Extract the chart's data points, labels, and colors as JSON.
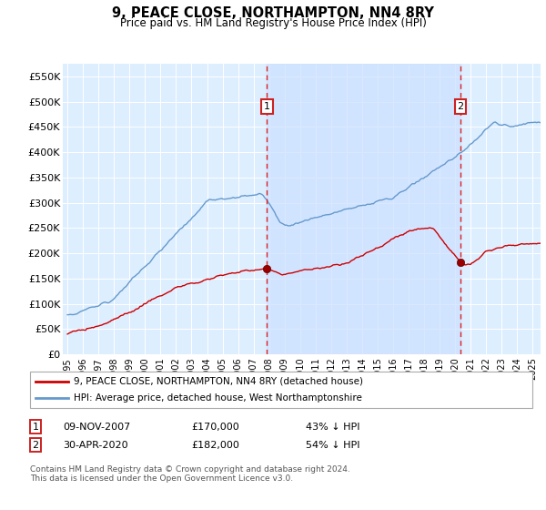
{
  "title": "9, PEACE CLOSE, NORTHAMPTON, NN4 8RY",
  "subtitle": "Price paid vs. HM Land Registry's House Price Index (HPI)",
  "legend_line1": "9, PEACE CLOSE, NORTHAMPTON, NN4 8RY (detached house)",
  "legend_line2": "HPI: Average price, detached house, West Northamptonshire",
  "footnote": "Contains HM Land Registry data © Crown copyright and database right 2024.\nThis data is licensed under the Open Government Licence v3.0.",
  "table_row1": [
    "1",
    "09-NOV-2007",
    "£170,000",
    "43% ↓ HPI"
  ],
  "table_row2": [
    "2",
    "30-APR-2020",
    "£182,000",
    "54% ↓ HPI"
  ],
  "ylim": [
    0,
    575000
  ],
  "yticks": [
    0,
    50000,
    100000,
    150000,
    200000,
    250000,
    300000,
    350000,
    400000,
    450000,
    500000,
    550000
  ],
  "ytick_labels": [
    "£0",
    "£50K",
    "£100K",
    "£150K",
    "£200K",
    "£250K",
    "£300K",
    "£350K",
    "£400K",
    "£450K",
    "£500K",
    "£550K"
  ],
  "line_color_red": "#cc0000",
  "line_color_blue": "#6699cc",
  "bg_color": "#ddeeff",
  "shade_color": "#cce0ff",
  "marker1_year": 2007.86,
  "marker2_year": 2020.33,
  "marker1_price": 170000,
  "marker2_price": 182000
}
